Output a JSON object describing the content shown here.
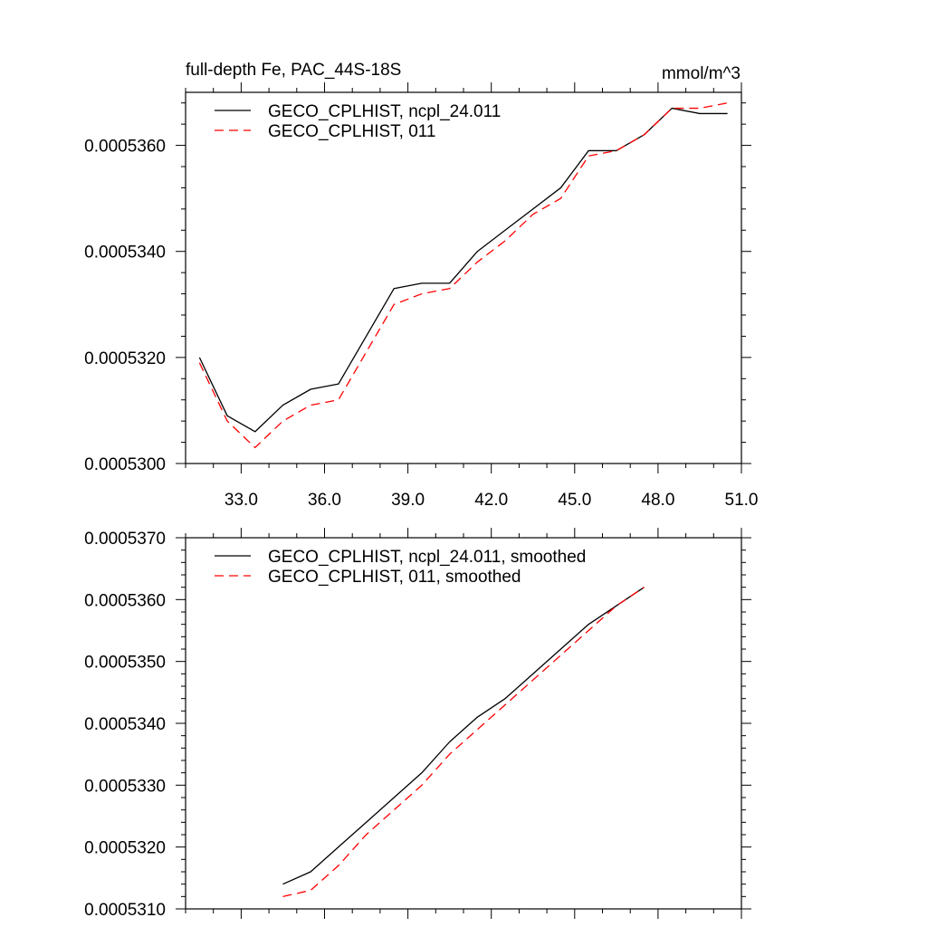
{
  "chart_data": [
    {
      "type": "line",
      "title": "full-depth Fe, PAC_44S-18S",
      "units": "mmol/m^3",
      "xlabel": "",
      "ylabel": "",
      "xlim": [
        31.0,
        51.0
      ],
      "ylim": [
        0.00053,
        0.000537
      ],
      "x_ticks": [
        33,
        36,
        39,
        42,
        45,
        48,
        51
      ],
      "x_tick_labels": [
        "33.0",
        "36.0",
        "39.0",
        "42.0",
        "45.0",
        "48.0",
        "51.0"
      ],
      "y_ticks": [
        0.00053,
        0.000532,
        0.000534,
        0.000536
      ],
      "y_tick_labels": [
        "0.0005300",
        "0.0005320",
        "0.0005340",
        "0.0005360"
      ],
      "legend_position": "top-left",
      "grid": false,
      "series": [
        {
          "name": "GECO_CPLHIST, ncpl_24.011",
          "style": "solid",
          "color": "#000000",
          "x": [
            31.5,
            32.5,
            33.5,
            34.5,
            35.5,
            36.5,
            37.5,
            38.5,
            39.5,
            40.5,
            41.5,
            42.5,
            43.5,
            44.5,
            45.5,
            46.5,
            47.5,
            48.5,
            49.5,
            50.5
          ],
          "y": [
            0.000532,
            0.0005309,
            0.0005306,
            0.0005311,
            0.0005314,
            0.0005315,
            0.0005324,
            0.0005333,
            0.0005334,
            0.0005334,
            0.000534,
            0.0005344,
            0.0005348,
            0.0005352,
            0.0005359,
            0.0005359,
            0.0005362,
            0.0005367,
            0.0005366,
            0.0005366
          ]
        },
        {
          "name": "GECO_CPLHIST, 011",
          "style": "dashed",
          "color": "#ff0000",
          "x": [
            31.5,
            32.5,
            33.5,
            34.5,
            35.5,
            36.5,
            37.5,
            38.5,
            39.5,
            40.5,
            41.5,
            42.5,
            43.5,
            44.5,
            45.5,
            46.5,
            47.5,
            48.5,
            49.5,
            50.5
          ],
          "y": [
            0.0005319,
            0.0005308,
            0.0005303,
            0.0005308,
            0.0005311,
            0.0005312,
            0.0005321,
            0.000533,
            0.0005332,
            0.0005333,
            0.0005338,
            0.0005342,
            0.0005347,
            0.000535,
            0.0005358,
            0.0005359,
            0.0005362,
            0.0005367,
            0.0005367,
            0.0005368
          ]
        }
      ]
    },
    {
      "type": "line",
      "title": "",
      "xlabel": "",
      "ylabel": "",
      "xlim": [
        31.0,
        51.0
      ],
      "ylim": [
        0.000531,
        0.000537
      ],
      "x_ticks": [
        33,
        36,
        39,
        42,
        45,
        48,
        51
      ],
      "x_tick_labels": [],
      "y_ticks": [
        0.000531,
        0.000532,
        0.000533,
        0.000534,
        0.000535,
        0.000536,
        0.000537
      ],
      "y_tick_labels": [
        "0.0005310",
        "0.0005320",
        "0.0005330",
        "0.0005340",
        "0.0005350",
        "0.0005360",
        "0.0005370"
      ],
      "legend_position": "top-left",
      "grid": false,
      "series": [
        {
          "name": "GECO_CPLHIST, ncpl_24.011, smoothed",
          "style": "solid",
          "color": "#000000",
          "x": [
            34.5,
            35.5,
            36.5,
            37.5,
            38.5,
            39.5,
            40.5,
            41.5,
            42.5,
            43.5,
            44.5,
            45.5,
            46.5,
            47.5
          ],
          "y": [
            0.0005314,
            0.0005316,
            0.000532,
            0.0005324,
            0.0005328,
            0.0005332,
            0.0005337,
            0.0005341,
            0.0005344,
            0.0005348,
            0.0005352,
            0.0005356,
            0.0005359,
            0.0005362
          ]
        },
        {
          "name": "GECO_CPLHIST, 011, smoothed",
          "style": "dashed",
          "color": "#ff0000",
          "x": [
            34.5,
            35.5,
            36.5,
            37.5,
            38.5,
            39.5,
            40.5,
            41.5,
            42.5,
            43.5,
            44.5,
            45.5,
            46.5,
            47.5
          ],
          "y": [
            0.0005312,
            0.0005313,
            0.0005317,
            0.0005322,
            0.0005326,
            0.000533,
            0.0005335,
            0.0005339,
            0.0005343,
            0.0005347,
            0.0005351,
            0.0005355,
            0.0005359,
            0.0005362
          ]
        }
      ]
    }
  ]
}
